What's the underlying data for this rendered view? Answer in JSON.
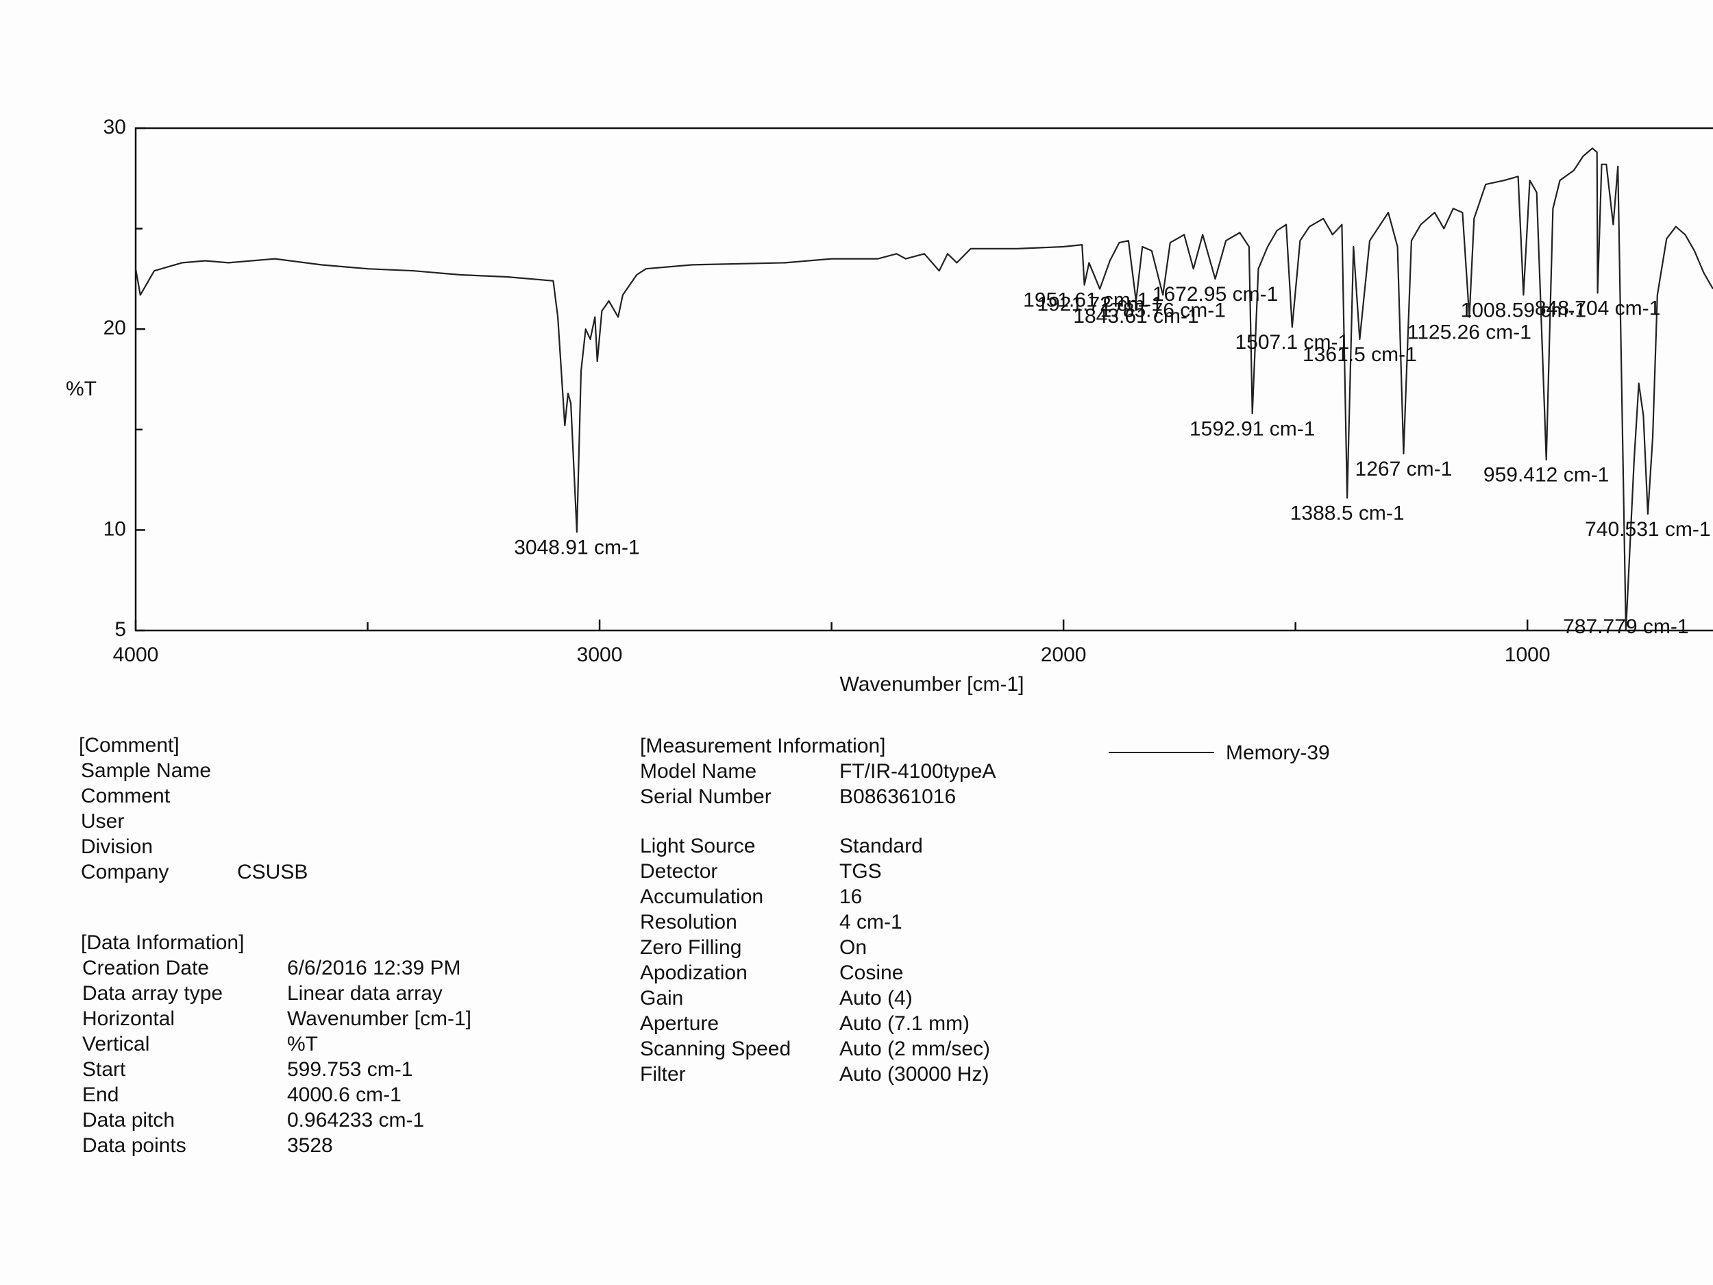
{
  "chart_data": {
    "type": "line",
    "xlabel": "Wavenumber [cm-1]",
    "ylabel": "%T",
    "xlim": [
      4000,
      600
    ],
    "ylim": [
      5,
      30
    ],
    "xticks": [
      4000,
      3000,
      2000,
      1000
    ],
    "xticks_minor": [
      3500,
      2500,
      1500
    ],
    "yticks": [
      5,
      10,
      20,
      30
    ],
    "yticks_minor": [
      15,
      25
    ],
    "x": [
      4000,
      3990,
      3960,
      3900,
      3850,
      3800,
      3700,
      3600,
      3500,
      3400,
      3300,
      3200,
      3100,
      3090,
      3075,
      3068,
      3062,
      3048.91,
      3040,
      3030,
      3020,
      3010,
      3005,
      2995,
      2980,
      2960,
      2950,
      2920,
      2900,
      2800,
      2600,
      2500,
      2400,
      2360,
      2340,
      2300,
      2268,
      2250,
      2230,
      2200,
      2100,
      2000,
      1960,
      1955,
      1945,
      1921.72,
      1900,
      1880,
      1860,
      1843.61,
      1830,
      1810,
      1785.76,
      1770,
      1740,
      1720,
      1700,
      1672.95,
      1650,
      1620,
      1600,
      1592.91,
      1580,
      1560,
      1540,
      1520,
      1507.1,
      1490,
      1470,
      1440,
      1420,
      1400,
      1388.5,
      1375,
      1361.5,
      1340,
      1300,
      1280,
      1267,
      1250,
      1230,
      1200,
      1180,
      1160,
      1140,
      1125.26,
      1115,
      1090,
      1050,
      1020,
      1008.59,
      995,
      980,
      959.412,
      945,
      930,
      900,
      880,
      860,
      850,
      848.704,
      840,
      830,
      815,
      805,
      787.779,
      770,
      760,
      750,
      740.531,
      730,
      720,
      700,
      680,
      660,
      640,
      620,
      600
    ],
    "series": [
      {
        "name": "Memory-39",
        "color": "#222222",
        "values": [
          23.0,
          21.7,
          22.9,
          23.3,
          23.4,
          23.3,
          23.5,
          23.2,
          23.0,
          22.9,
          22.7,
          22.6,
          22.4,
          20.6,
          15.2,
          16.8,
          16.3,
          9.9,
          17.9,
          20.0,
          19.5,
          20.6,
          18.4,
          20.9,
          21.4,
          20.6,
          21.7,
          22.7,
          23.0,
          23.2,
          23.3,
          23.5,
          23.5,
          23.75,
          23.5,
          23.75,
          22.9,
          23.75,
          23.3,
          24.0,
          24.0,
          24.1,
          24.2,
          22.2,
          23.3,
          22.0,
          23.4,
          24.3,
          24.4,
          21.4,
          24.1,
          23.9,
          21.7,
          24.3,
          24.7,
          23.0,
          24.7,
          22.5,
          24.4,
          24.8,
          24.1,
          15.8,
          23.0,
          24.1,
          24.9,
          25.2,
          20.1,
          24.4,
          25.1,
          25.5,
          24.7,
          25.2,
          11.6,
          24.1,
          19.5,
          24.4,
          25.8,
          24.1,
          13.8,
          24.4,
          25.2,
          25.8,
          25.0,
          26.0,
          25.8,
          20.6,
          25.5,
          27.2,
          27.4,
          27.6,
          21.7,
          27.4,
          26.8,
          13.5,
          26.0,
          27.4,
          27.9,
          28.6,
          29.0,
          28.8,
          21.8,
          28.2,
          28.2,
          25.2,
          28.1,
          5.0,
          13.5,
          17.3,
          15.7,
          10.8,
          14.6,
          21.7,
          24.5,
          25.1,
          24.7,
          23.9,
          22.8,
          22.0
        ]
      }
    ],
    "annotations": [
      {
        "label": "3048.91 cm-1",
        "x": 3048.91,
        "y": 9.9
      },
      {
        "label": "1951.61 cm-1",
        "x": 1951.61,
        "y": 22.2
      },
      {
        "label": "1921.72 cm-1",
        "x": 1921.72,
        "y": 22.0
      },
      {
        "label": "1843.61 cm-1",
        "x": 1843.61,
        "y": 21.4
      },
      {
        "label": "1785.76 cm-1",
        "x": 1785.76,
        "y": 21.7
      },
      {
        "label": "1672.95 cm-1",
        "x": 1672.95,
        "y": 22.5
      },
      {
        "label": "1592.91 cm-1",
        "x": 1592.91,
        "y": 15.8
      },
      {
        "label": "1507.1 cm-1",
        "x": 1507.1,
        "y": 20.1
      },
      {
        "label": "1388.5 cm-1",
        "x": 1388.5,
        "y": 11.6
      },
      {
        "label": "1361.5 cm-1",
        "x": 1361.5,
        "y": 19.5
      },
      {
        "label": "1267 cm-1",
        "x": 1267,
        "y": 13.8
      },
      {
        "label": "1125.26 cm-1",
        "x": 1125.26,
        "y": 20.6
      },
      {
        "label": "1008.59 cm-1",
        "x": 1008.59,
        "y": 21.7
      },
      {
        "label": "959.412 cm-1",
        "x": 959.412,
        "y": 13.5
      },
      {
        "label": "848.704 cm-1",
        "x": 848.704,
        "y": 21.8
      },
      {
        "label": "787.779 cm-1",
        "x": 787.779,
        "y": 5.0
      },
      {
        "label": "740.531 cm-1",
        "x": 740.531,
        "y": 10.8
      }
    ]
  },
  "comment": {
    "header": "[Comment]",
    "rows": [
      [
        "Sample Name"
      ],
      [
        "Comment"
      ],
      [
        "User"
      ],
      [
        "Division"
      ],
      [
        "Company",
        "CSUSB"
      ]
    ]
  },
  "data_information": {
    "header": "[Data Information]",
    "rows": [
      [
        "Creation Date",
        "6/6/2016 12:39 PM"
      ],
      [
        "Data array type",
        "Linear data array"
      ],
      [
        "Horizontal",
        "Wavenumber [cm-1]"
      ],
      [
        "Vertical",
        "%T"
      ],
      [
        "Start",
        "599.753 cm-1"
      ],
      [
        "End",
        "4000.6 cm-1"
      ],
      [
        "Data pitch",
        "0.964233 cm-1"
      ],
      [
        "Data points",
        "3528"
      ]
    ]
  },
  "measurement_information": {
    "header": "[Measurement Information]",
    "groups": [
      [
        [
          "Model Name",
          "FT/IR-4100typeA"
        ],
        [
          "Serial Number",
          "B086361016"
        ]
      ],
      [
        [
          "Light Source",
          "Standard"
        ],
        [
          "Detector",
          "TGS"
        ],
        [
          "Accumulation",
          "16"
        ],
        [
          "Resolution",
          "4 cm-1"
        ],
        [
          "Zero Filling",
          "On"
        ],
        [
          "Apodization",
          "Cosine"
        ],
        [
          "Gain",
          "Auto (4)"
        ],
        [
          "Aperture",
          "Auto (7.1 mm)"
        ],
        [
          "Scanning Speed",
          "Auto (2 mm/sec)"
        ],
        [
          "Filter",
          "Auto (30000 Hz)"
        ]
      ]
    ]
  }
}
